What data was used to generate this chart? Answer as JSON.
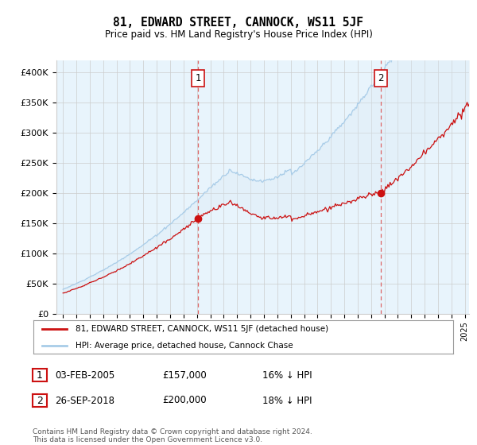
{
  "title": "81, EDWARD STREET, CANNOCK, WS11 5JF",
  "subtitle": "Price paid vs. HM Land Registry's House Price Index (HPI)",
  "ylabel_ticks": [
    "£0",
    "£50K",
    "£100K",
    "£150K",
    "£200K",
    "£250K",
    "£300K",
    "£350K",
    "£400K"
  ],
  "ytick_vals": [
    0,
    50000,
    100000,
    150000,
    200000,
    250000,
    300000,
    350000,
    400000
  ],
  "ylim": [
    0,
    420000
  ],
  "xlim_start": 1994.5,
  "xlim_end": 2025.3,
  "hpi_color": "#a8cce8",
  "hpi_fill_color": "#daeaf5",
  "price_color": "#cc1111",
  "vline_color": "#dd6666",
  "sale1_x": 2005.08,
  "sale1_y": 157000,
  "sale2_x": 2018.73,
  "sale2_y": 200000,
  "legend_line1": "81, EDWARD STREET, CANNOCK, WS11 5JF (detached house)",
  "legend_line2": "HPI: Average price, detached house, Cannock Chase",
  "annot1_label": "1",
  "annot2_label": "2",
  "table_row1": [
    "1",
    "03-FEB-2005",
    "£157,000",
    "16% ↓ HPI"
  ],
  "table_row2": [
    "2",
    "26-SEP-2018",
    "£200,000",
    "18% ↓ HPI"
  ],
  "footnote": "Contains HM Land Registry data © Crown copyright and database right 2024.\nThis data is licensed under the Open Government Licence v3.0.",
  "background_color": "#ffffff",
  "grid_color": "#cccccc"
}
